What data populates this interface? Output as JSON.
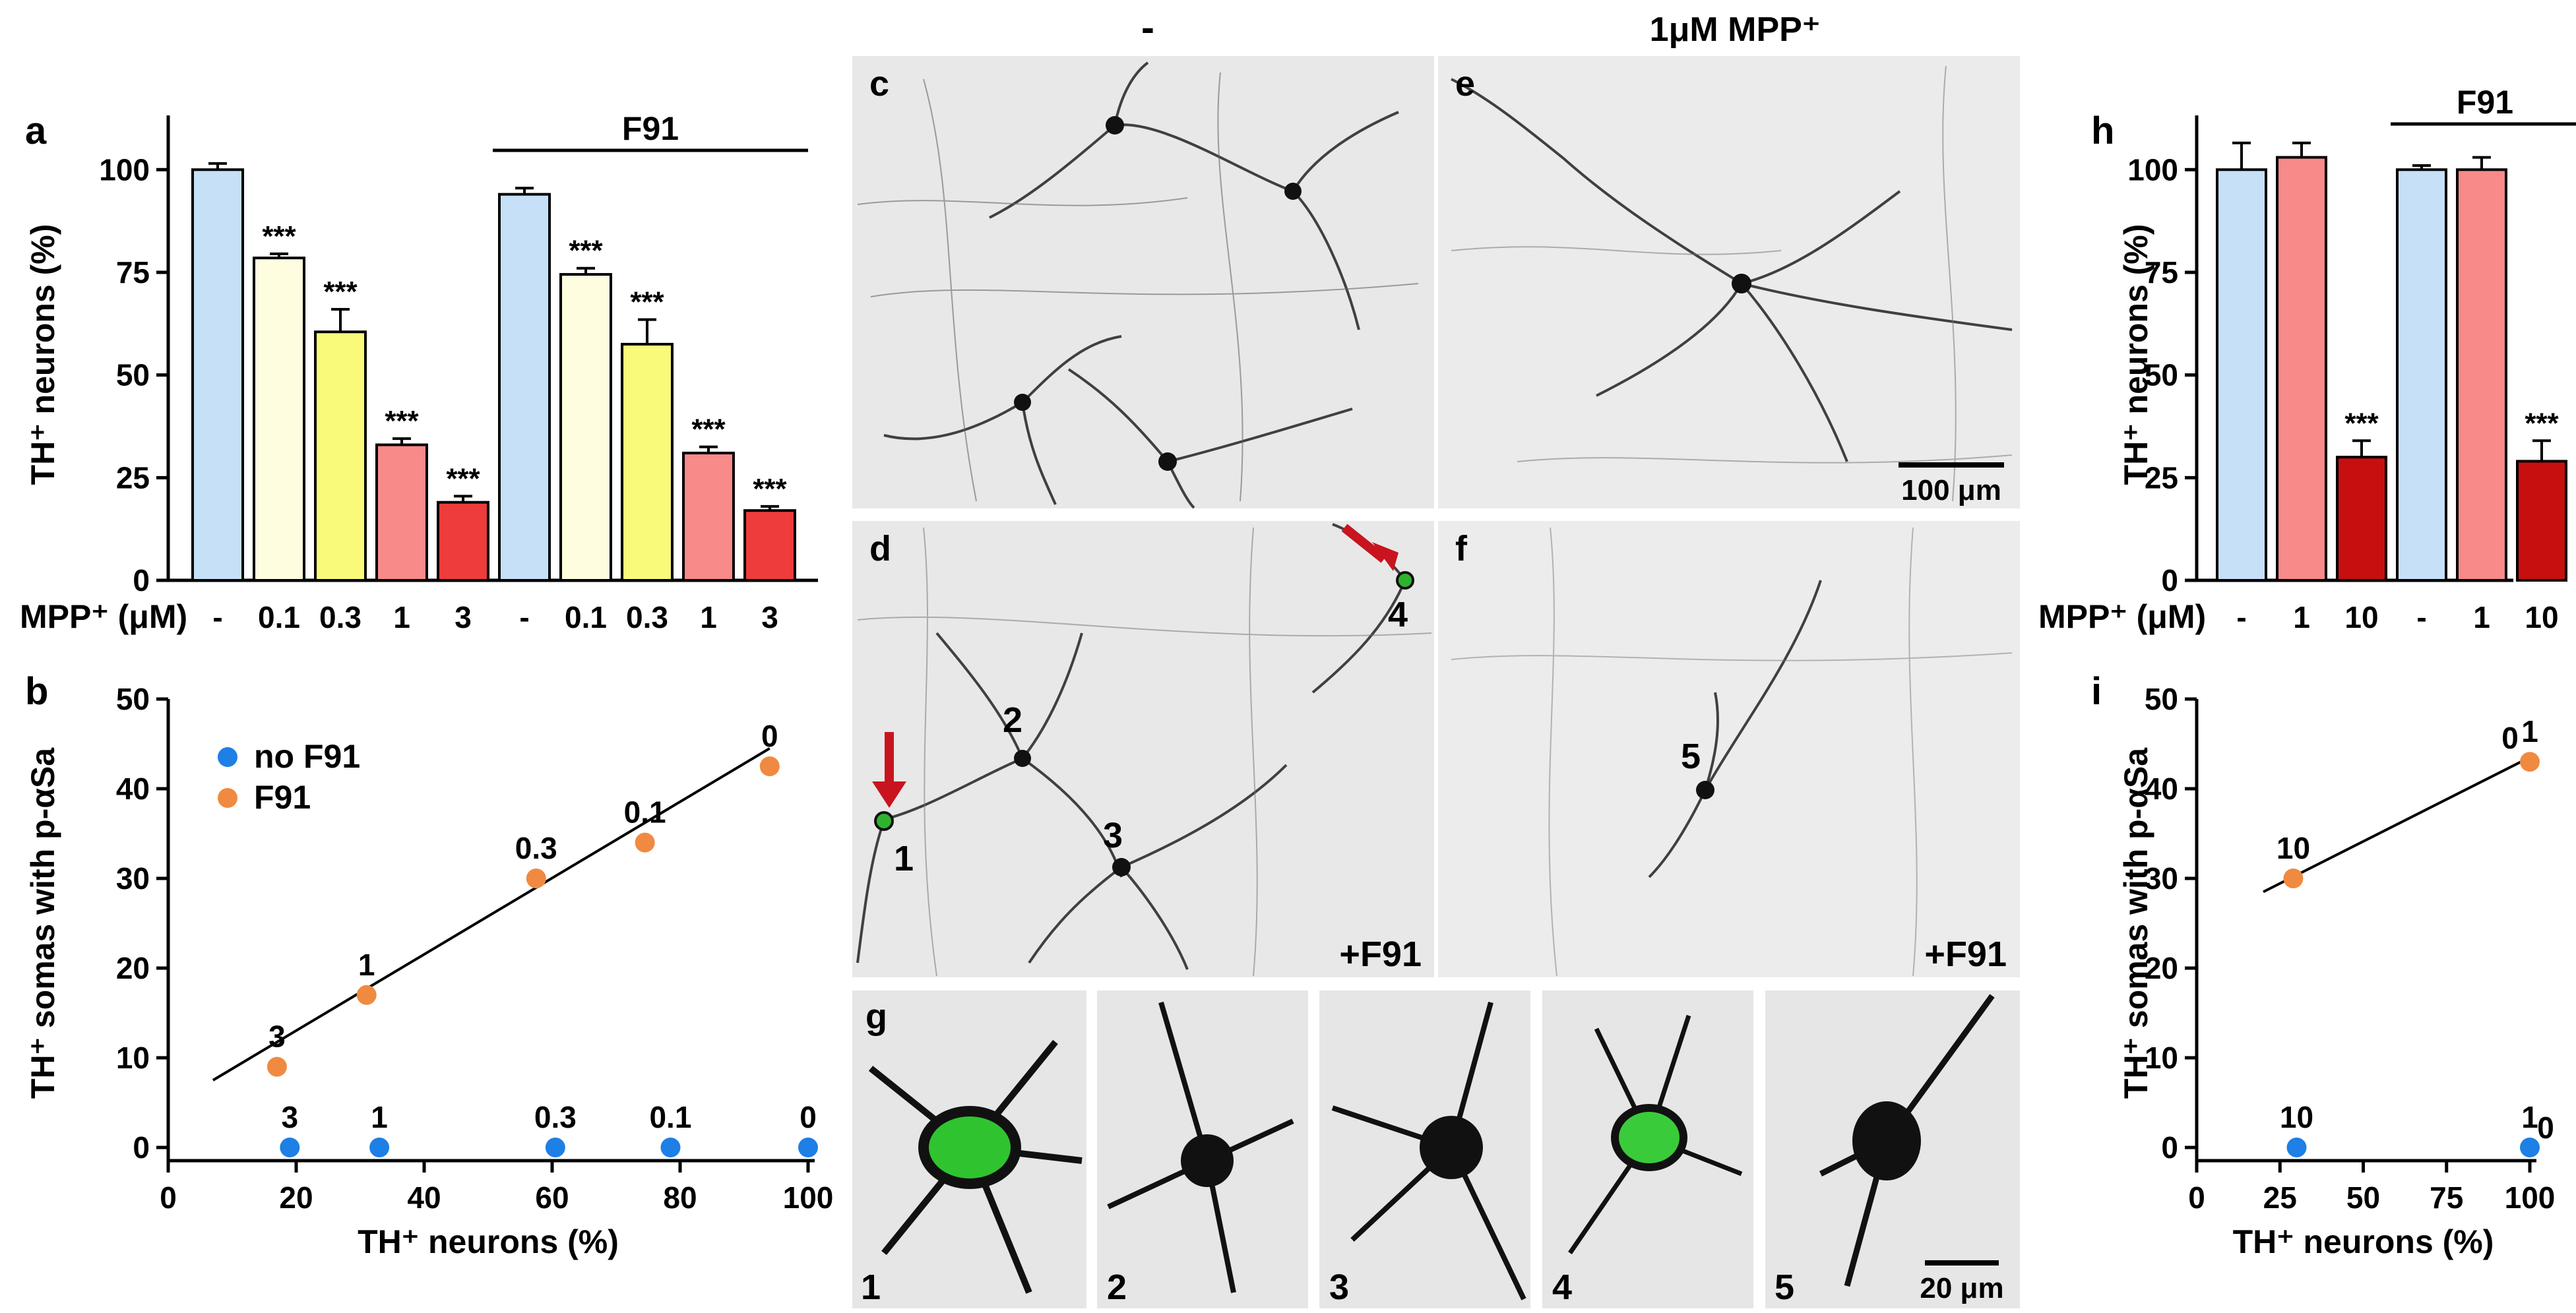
{
  "colors": {
    "control": "#c6e0f8",
    "mpp_01": "#fefde0",
    "mpp_03": "#fafa7a",
    "mpp_1": "#f88a8a",
    "mpp_3": "#ee3b3b",
    "mpp_10": "#c80f0f",
    "no_f91": "#1e7fe6",
    "f91": "#f08a40"
  },
  "micro_panels": {
    "col1_title": "-",
    "col2_title": "1μM MPP⁺",
    "c": {
      "letter": "c"
    },
    "d": {
      "letter": "d",
      "tag": "+F91",
      "neurons": [
        "1",
        "2",
        "3",
        "4"
      ]
    },
    "e": {
      "letter": "e",
      "scale": "100 μm"
    },
    "f": {
      "letter": "f",
      "tag": "+F91",
      "neurons": [
        "5"
      ]
    },
    "g": {
      "letter": "g",
      "insets": [
        "1",
        "2",
        "3",
        "4",
        "5"
      ],
      "scale": "20 μm"
    }
  },
  "chart_data": [
    {
      "panel": "a",
      "type": "bar",
      "ylabel": "TH⁺ neurons (%)",
      "xlabel": "MPP⁺ (μM)",
      "categories": [
        "-",
        "0.1",
        "0.3",
        "1",
        "3",
        "-",
        "0.1",
        "0.3",
        "1",
        "3"
      ],
      "values": [
        100,
        78.5,
        60.5,
        33,
        19,
        94,
        74.5,
        57.5,
        31,
        17
      ],
      "errors": [
        1.5,
        1,
        5.5,
        1.5,
        1.5,
        1.5,
        1.5,
        6,
        1.5,
        1
      ],
      "significance": [
        "",
        "***",
        "***",
        "***",
        "***",
        "",
        "***",
        "***",
        "***",
        "***"
      ],
      "group_label": "F91",
      "ylim": [
        0,
        110
      ],
      "yticks": [
        0,
        25,
        50,
        75,
        100
      ]
    },
    {
      "panel": "b",
      "type": "scatter",
      "ylabel": "TH⁺ somas with p-αSa",
      "xlabel": "TH⁺ neurons (%)",
      "xlim": [
        0,
        100
      ],
      "ylim": [
        0,
        50
      ],
      "xticks": [
        0,
        20,
        40,
        60,
        80,
        100
      ],
      "yticks": [
        0,
        10,
        20,
        30,
        40,
        50
      ],
      "series": [
        {
          "name": "no F91",
          "points": [
            {
              "x": 19,
              "y": 0,
              "label": "3"
            },
            {
              "x": 33,
              "y": 0,
              "label": "1"
            },
            {
              "x": 60.5,
              "y": 0,
              "label": "0.3"
            },
            {
              "x": 78.5,
              "y": 0,
              "label": "0.1"
            },
            {
              "x": 100,
              "y": 0,
              "label": "0"
            }
          ]
        },
        {
          "name": "F91",
          "points": [
            {
              "x": 17,
              "y": 9,
              "label": "3"
            },
            {
              "x": 31,
              "y": 17,
              "label": "1"
            },
            {
              "x": 57.5,
              "y": 30,
              "label": "0.3"
            },
            {
              "x": 74.5,
              "y": 34,
              "label": "0.1"
            },
            {
              "x": 94,
              "y": 42.5,
              "label": "0"
            }
          ]
        }
      ],
      "fit_line": {
        "x": [
          7,
          94
        ],
        "y": [
          7.5,
          44.5
        ]
      }
    },
    {
      "panel": "h",
      "type": "bar",
      "ylabel": "TH⁺ neurons (%)",
      "xlabel": "MPP⁺ (μM)",
      "categories": [
        "-",
        "1",
        "10",
        "-",
        "1",
        "10"
      ],
      "values": [
        100,
        103,
        30,
        100,
        100,
        29
      ],
      "errors": [
        6.5,
        3.5,
        4,
        1,
        3,
        5
      ],
      "significance": [
        "",
        "",
        "***",
        "",
        "",
        "***"
      ],
      "group_label": "F91",
      "ylim": [
        0,
        110
      ],
      "yticks": [
        0,
        25,
        50,
        75,
        100
      ]
    },
    {
      "panel": "i",
      "type": "scatter",
      "ylabel": "TH⁺ somas with p-αSa",
      "xlabel": "TH⁺ neurons (%)",
      "xlim": [
        0,
        100
      ],
      "ylim": [
        0,
        50
      ],
      "xticks": [
        0,
        25,
        50,
        75,
        100
      ],
      "yticks": [
        0,
        10,
        20,
        30,
        40,
        50
      ],
      "series": [
        {
          "name": "no F91",
          "points": [
            {
              "x": 30,
              "y": 0,
              "label": "10"
            },
            {
              "x": 100,
              "y": 0,
              "label": "1",
              "label2": "0"
            }
          ]
        },
        {
          "name": "F91",
          "points": [
            {
              "x": 29,
              "y": 30,
              "label": "10"
            },
            {
              "x": 100,
              "y": 43,
              "label": "1",
              "label2": "0"
            }
          ]
        }
      ],
      "fit_line": {
        "x": [
          20,
          100
        ],
        "y": [
          28.5,
          43.5
        ]
      }
    }
  ]
}
